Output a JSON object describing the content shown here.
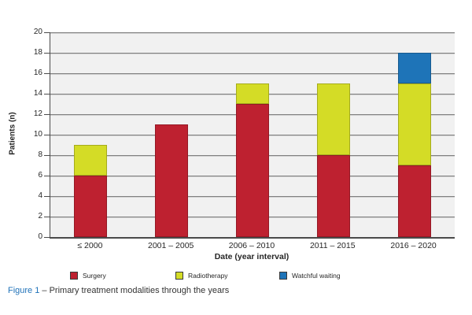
{
  "chart_data": {
    "type": "bar",
    "stacked": true,
    "categories": [
      "≤ 2000",
      "2001 – 2005",
      "2006 – 2010",
      "2011 – 2015",
      "2016 – 2020"
    ],
    "series": [
      {
        "name": "Surgery",
        "color": "#BE2130",
        "values": [
          6,
          11,
          13,
          8,
          7
        ]
      },
      {
        "name": "Radiotherapy",
        "color": "#D4DC26",
        "values": [
          3,
          0,
          2,
          7,
          8
        ]
      },
      {
        "name": "Watchful waiting",
        "color": "#1E74B8",
        "values": [
          0,
          0,
          0,
          0,
          3
        ]
      }
    ],
    "xlabel": "Date (year interval)",
    "ylabel": "Patients (n)",
    "ylim": [
      0,
      20
    ],
    "ytick_step": 2,
    "grid": true,
    "legend_position": "bottom",
    "plot_background": "#F1F1F1",
    "axis_color": "#4a4a4a"
  },
  "caption": {
    "label": "Figure 1",
    "text": " – Primary treatment modalities through the years"
  }
}
